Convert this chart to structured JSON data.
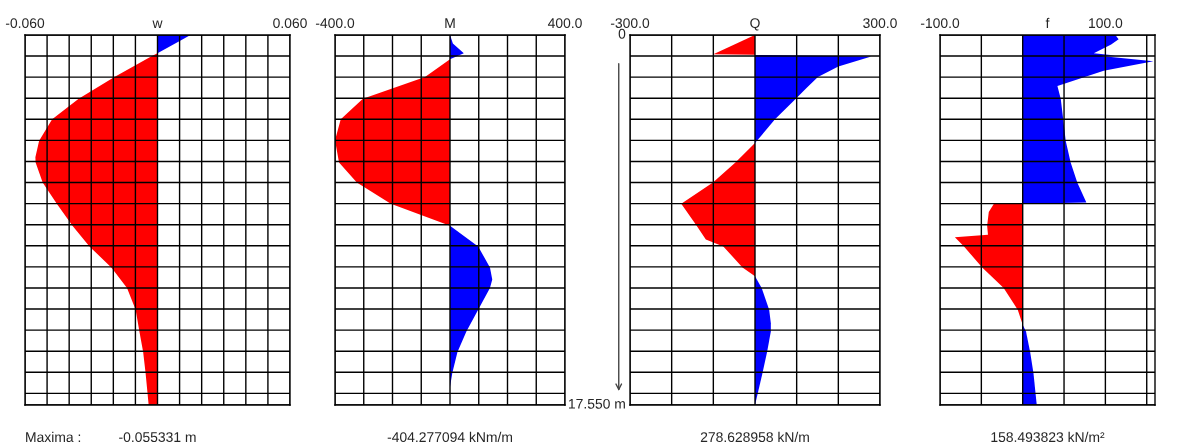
{
  "chart_data": [
    {
      "type": "area",
      "orientation": "horizontal",
      "title": "w",
      "xlim": [
        -0.06,
        0.06
      ],
      "xticks": [
        {
          "value": -0.06,
          "label": "-0.060"
        },
        {
          "value": -0.05,
          "label": null
        },
        {
          "value": -0.04,
          "label": null
        },
        {
          "value": -0.03,
          "label": null
        },
        {
          "value": -0.02,
          "label": null
        },
        {
          "value": -0.01,
          "label": null
        },
        {
          "value": 0,
          "label": null
        },
        {
          "value": 0.01,
          "label": null
        },
        {
          "value": 0.02,
          "label": null
        },
        {
          "value": 0.03,
          "label": null
        },
        {
          "value": 0.04,
          "label": null
        },
        {
          "value": 0.05,
          "label": null
        },
        {
          "value": 0.06,
          "label": "0.060"
        }
      ],
      "ylim": [
        17.55,
        0
      ],
      "yticks": [
        {
          "value": 0,
          "label": null
        },
        {
          "value": 1,
          "label": null
        },
        {
          "value": 2,
          "label": null
        },
        {
          "value": 3,
          "label": null
        },
        {
          "value": 4,
          "label": null
        },
        {
          "value": 5,
          "label": null
        },
        {
          "value": 6,
          "label": null
        },
        {
          "value": 7,
          "label": null
        },
        {
          "value": 8,
          "label": null
        },
        {
          "value": 9,
          "label": null
        },
        {
          "value": 10,
          "label": null
        },
        {
          "value": 11,
          "label": null
        },
        {
          "value": 12,
          "label": null
        },
        {
          "value": 13,
          "label": null
        },
        {
          "value": 14,
          "label": null
        },
        {
          "value": 15,
          "label": null
        },
        {
          "value": 16,
          "label": null
        },
        {
          "value": 17,
          "label": null
        },
        {
          "value": 17.55,
          "label": null
        }
      ],
      "grid": true,
      "tick_labels": "x",
      "series": [
        {
          "color": "#0000ff",
          "x": [
            0,
            0.87
          ],
          "values": [
            0.015,
            0
          ]
        },
        {
          "color": "#ff0000",
          "x": [
            0.87,
            1.0,
            2.0,
            3.03,
            4.0,
            5.02,
            5.8,
            6.05,
            7.0,
            8.0,
            9.05,
            10.03,
            11.03,
            12.0,
            13.03,
            14.06,
            15.04,
            16.03,
            17.55
          ],
          "values": [
            0,
            -0.0025,
            -0.0195,
            -0.0357,
            -0.0477,
            -0.0536,
            -0.0553,
            -0.0552,
            -0.052,
            -0.0456,
            -0.0385,
            -0.0308,
            -0.0209,
            -0.0138,
            -0.0099,
            -0.0082,
            -0.0065,
            -0.0054,
            -0.004
          ]
        }
      ],
      "annotations": [
        "Maxima :",
        "-0.055331 m"
      ]
    },
    {
      "type": "area",
      "orientation": "horizontal",
      "title": "M",
      "xlim": [
        -400,
        400
      ],
      "xticks": [
        {
          "value": -400,
          "label": "-400.0"
        },
        {
          "value": -300,
          "label": null
        },
        {
          "value": -200,
          "label": null
        },
        {
          "value": -100,
          "label": null
        },
        {
          "value": 0,
          "label": null
        },
        {
          "value": 100,
          "label": null
        },
        {
          "value": 200,
          "label": null
        },
        {
          "value": 300,
          "label": null
        },
        {
          "value": 400,
          "label": "400.0"
        }
      ],
      "ylim": [
        17.55,
        0
      ],
      "yticks": [
        {
          "value": 0,
          "label": null
        },
        {
          "value": 1,
          "label": null
        },
        {
          "value": 2,
          "label": null
        },
        {
          "value": 3,
          "label": null
        },
        {
          "value": 4,
          "label": null
        },
        {
          "value": 5,
          "label": null
        },
        {
          "value": 6,
          "label": null
        },
        {
          "value": 7,
          "label": null
        },
        {
          "value": 8,
          "label": null
        },
        {
          "value": 9,
          "label": null
        },
        {
          "value": 10,
          "label": null
        },
        {
          "value": 11,
          "label": null
        },
        {
          "value": 12,
          "label": null
        },
        {
          "value": 13,
          "label": null
        },
        {
          "value": 14,
          "label": null
        },
        {
          "value": 15,
          "label": null
        },
        {
          "value": 16,
          "label": null
        },
        {
          "value": 17,
          "label": null
        },
        {
          "value": 17.55,
          "label": null
        }
      ],
      "grid": true,
      "tick_labels": "x",
      "series": [
        {
          "color": "#0000ff",
          "x": [
            0,
            0.4,
            0.87,
            1.15
          ],
          "values": [
            0,
            10,
            48,
            0
          ]
        },
        {
          "color": "#ff0000",
          "x": [
            1.15,
            2.0,
            3.03,
            4.0,
            5.0,
            6.05,
            7.0,
            8.0,
            9.05
          ],
          "values": [
            0,
            -87,
            -303,
            -380,
            -400,
            -386,
            -324,
            -206,
            0
          ]
        },
        {
          "color": "#0000ff",
          "x": [
            9.05,
            10.03,
            11.03,
            11.6,
            12.0,
            13.03,
            14.06,
            15.04,
            16.03,
            16.7
          ],
          "values": [
            0,
            98,
            139,
            147,
            139,
            98,
            57,
            26,
            8,
            0
          ]
        }
      ],
      "annotations": [
        "-404.277094 kNm/m"
      ]
    },
    {
      "type": "area",
      "orientation": "horizontal",
      "title": "Q",
      "xlim": [
        -300,
        300
      ],
      "xticks": [
        {
          "value": -300,
          "label": "-300.0"
        },
        {
          "value": -200,
          "label": null
        },
        {
          "value": -100,
          "label": null
        },
        {
          "value": 0,
          "label": null
        },
        {
          "value": 100,
          "label": null
        },
        {
          "value": 200,
          "label": null
        },
        {
          "value": 300,
          "label": "300.0"
        }
      ],
      "ylim": [
        17.55,
        0
      ],
      "yticks": [
        {
          "value": 0,
          "label": "0"
        },
        {
          "value": 1,
          "label": null
        },
        {
          "value": 2,
          "label": null
        },
        {
          "value": 3,
          "label": null
        },
        {
          "value": 4,
          "label": null
        },
        {
          "value": 5,
          "label": null
        },
        {
          "value": 6,
          "label": null
        },
        {
          "value": 7,
          "label": null
        },
        {
          "value": 8,
          "label": null
        },
        {
          "value": 9,
          "label": null
        },
        {
          "value": 10,
          "label": null
        },
        {
          "value": 11,
          "label": null
        },
        {
          "value": 12,
          "label": null
        },
        {
          "value": 13,
          "label": null
        },
        {
          "value": 14,
          "label": null
        },
        {
          "value": 15,
          "label": null
        },
        {
          "value": 16,
          "label": null
        },
        {
          "value": 17,
          "label": null
        },
        {
          "value": 17.55,
          "label": "17.550 m"
        }
      ],
      "grid": true,
      "series": [
        {
          "color": "#ff0000",
          "x": [
            0,
            0.92,
            0.94
          ],
          "values": [
            0,
            -100,
            0
          ]
        },
        {
          "color": "#0000ff",
          "x": [
            0.95,
            1.02,
            1.5,
            2.0,
            2.53,
            3.03,
            4.0,
            5.13
          ],
          "values": [
            0,
            279,
            200,
            151,
            123,
            98,
            48,
            0
          ]
        },
        {
          "color": "#ff0000",
          "x": [
            5.13,
            6.05,
            7.0,
            8.0,
            9.05,
            9.7,
            10.03,
            11.03,
            11.45
          ],
          "values": [
            0,
            -47,
            -101,
            -177,
            -140,
            -118,
            -76,
            -30,
            0
          ]
        },
        {
          "color": "#0000ff",
          "x": [
            11.45,
            12.0,
            13.03,
            13.67,
            14.06,
            15.04,
            16.03,
            17.55
          ],
          "values": [
            0,
            16,
            34,
            38,
            38,
            29,
            18,
            0
          ]
        }
      ],
      "annotations": [
        "278.628958 kN/m"
      ]
    },
    {
      "type": "area",
      "orientation": "horizontal",
      "title": "f",
      "xlim": [
        -100,
        160
      ],
      "xticks": [
        {
          "value": -100,
          "label": "-100.0"
        },
        {
          "value": -50,
          "label": null
        },
        {
          "value": 0,
          "label": null
        },
        {
          "value": 50,
          "label": null
        },
        {
          "value": 100,
          "label": "100.0"
        },
        {
          "value": 150,
          "label": null
        }
      ],
      "ylim": [
        17.55,
        0
      ],
      "yticks": [
        {
          "value": 0,
          "label": null
        },
        {
          "value": 1,
          "label": null
        },
        {
          "value": 2,
          "label": null
        },
        {
          "value": 3,
          "label": null
        },
        {
          "value": 4,
          "label": null
        },
        {
          "value": 5,
          "label": null
        },
        {
          "value": 6,
          "label": null
        },
        {
          "value": 7,
          "label": null
        },
        {
          "value": 8,
          "label": null
        },
        {
          "value": 9,
          "label": null
        },
        {
          "value": 10,
          "label": null
        },
        {
          "value": 11,
          "label": null
        },
        {
          "value": 12,
          "label": null
        },
        {
          "value": 13,
          "label": null
        },
        {
          "value": 14,
          "label": null
        },
        {
          "value": 15,
          "label": null
        },
        {
          "value": 16,
          "label": null
        },
        {
          "value": 17,
          "label": null
        },
        {
          "value": 17.55,
          "label": null
        }
      ],
      "grid": true,
      "tick_labels": "x",
      "series": [
        {
          "color": "#0000ff",
          "x": [
            0,
            0.2,
            0.45,
            0.87,
            0.97,
            1.0,
            1.25,
            1.7,
            2.42,
            3.03,
            4.0,
            5.02,
            6.05,
            7.0,
            7.95,
            8.0
          ],
          "values": [
            112,
            116,
            107,
            86,
            112,
            95,
            158,
            98,
            42,
            46,
            49,
            52,
            58,
            66,
            77,
            0
          ]
        },
        {
          "color": "#ff0000",
          "x": [
            8.0,
            8.02,
            8.4,
            9.05,
            9.48,
            9.6,
            10.03,
            11.03,
            12.0,
            13.03,
            13.75
          ],
          "values": [
            0,
            -35,
            -41,
            -43,
            -42,
            -82,
            -71,
            -49,
            -23,
            -6,
            0
          ]
        },
        {
          "color": "#0000ff",
          "x": [
            13.75,
            14.06,
            15.04,
            16.03,
            17.55
          ],
          "values": [
            0,
            4,
            9,
            13,
            17
          ]
        }
      ],
      "annotations": [
        "158.493823 kN/m²"
      ]
    }
  ]
}
